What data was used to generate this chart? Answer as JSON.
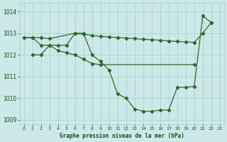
{
  "line1_x": [
    0,
    1,
    2,
    3,
    4,
    5,
    6,
    7,
    8,
    9,
    10,
    11,
    12,
    13,
    14,
    15,
    16,
    17,
    18,
    19,
    20,
    21,
    22
  ],
  "line1_y": [
    1012.8,
    1012.8,
    1012.45,
    1012.45,
    1012.45,
    1012.45,
    1013.0,
    1013.0,
    1012.0,
    1011.7,
    1011.3,
    1010.2,
    1010.0,
    1009.5,
    1009.4,
    1009.4,
    1009.45,
    1009.45,
    1010.5,
    1010.5,
    1010.55,
    1013.8,
    1013.5
  ],
  "line2_x": [
    0,
    1,
    2,
    3,
    6,
    7,
    8,
    9,
    10,
    11,
    12,
    13,
    14,
    15,
    16,
    17,
    18,
    19,
    20,
    21,
    22
  ],
  "line2_y": [
    1012.8,
    1012.8,
    1012.8,
    1012.75,
    1013.0,
    1012.95,
    1012.9,
    1012.85,
    1012.83,
    1012.8,
    1012.78,
    1012.75,
    1012.72,
    1012.7,
    1012.68,
    1012.65,
    1012.62,
    1012.6,
    1012.58,
    1013.0,
    1013.5
  ],
  "line3_x": [
    1,
    2,
    3,
    4,
    5,
    6,
    7,
    8,
    9,
    20
  ],
  "line3_y": [
    1012.0,
    1012.0,
    1012.45,
    1012.2,
    1012.1,
    1012.0,
    1011.8,
    1011.6,
    1011.55,
    1011.55
  ],
  "ylim": [
    1008.8,
    1014.4
  ],
  "yticks": [
    1009,
    1010,
    1011,
    1012,
    1013,
    1014
  ],
  "xlim": [
    -0.5,
    23.5
  ],
  "xticks": [
    0,
    1,
    2,
    3,
    4,
    5,
    6,
    7,
    8,
    9,
    10,
    11,
    12,
    13,
    14,
    15,
    16,
    17,
    18,
    19,
    20,
    21,
    22,
    23
  ],
  "xlabel": "Graphe pression niveau de la mer (hPa)",
  "bg_color": "#cce8e8",
  "grid_color": "#a8d0c8",
  "line_color": "#2d6a2d",
  "tick_color": "#1a4a1a",
  "label_color": "#1a4a1a"
}
